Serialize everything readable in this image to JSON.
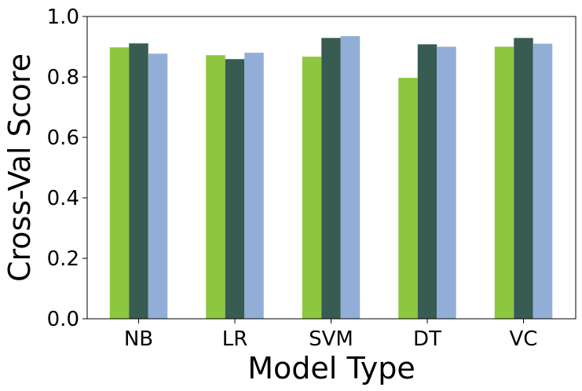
{
  "chart_data": {
    "type": "bar",
    "title": "",
    "xlabel": "Model Type",
    "ylabel": "Cross-Val Score",
    "categories": [
      "NB",
      "LR",
      "SVM",
      "DT",
      "VC"
    ],
    "ylim": [
      0.0,
      1.0
    ],
    "yticks": [
      0.0,
      0.2,
      0.4,
      0.6,
      0.8,
      1.0
    ],
    "ytick_labels": [
      "0.0",
      "0.2",
      "0.4",
      "0.6",
      "0.8",
      "1.0"
    ],
    "grid": false,
    "legend": "none",
    "series": [
      {
        "color": "#8dc63f",
        "values": [
          0.898,
          0.872,
          0.867,
          0.797,
          0.9
        ]
      },
      {
        "color": "#385c52",
        "values": [
          0.911,
          0.859,
          0.929,
          0.908,
          0.929
        ]
      },
      {
        "color": "#91afd6",
        "values": [
          0.877,
          0.88,
          0.935,
          0.9,
          0.91
        ]
      }
    ]
  }
}
